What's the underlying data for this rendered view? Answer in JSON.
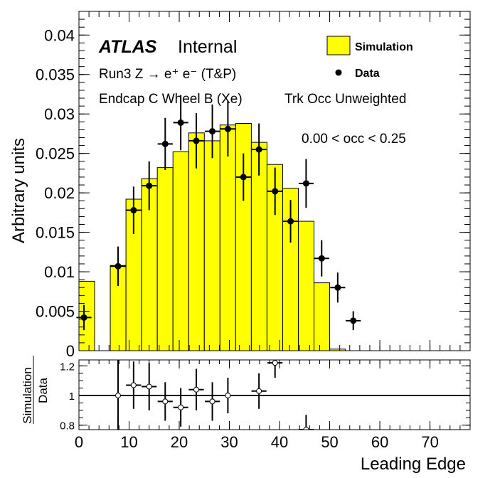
{
  "chart_data": {
    "type": "bar",
    "xlabel": "Leading Edge",
    "ylabel": "Arbitrary units",
    "xlim": [
      0,
      78
    ],
    "ylim": [
      0,
      0.043
    ],
    "x_ticks": [
      "0",
      "10",
      "20",
      "30",
      "40",
      "50",
      "60",
      "70"
    ],
    "y_ticks": [
      "0",
      "0.005",
      "0.01",
      "0.015",
      "0.02",
      "0.025",
      "0.03",
      "0.035",
      "0.04"
    ],
    "annotations": {
      "atlas": "ATLAS",
      "internal": "Internal",
      "process": "Run3 Z → e⁺ e⁻ (T&P)",
      "region": "Endcap C Wheel B (Xe)",
      "weighting": "Trk Occ Unweighted",
      "occupancy": "0.00 < occ < 0.25"
    },
    "legend": {
      "placement": "top-right",
      "simulation": "Simulation",
      "data": "Data"
    },
    "bin_edges": [
      0,
      3.125,
      6.25,
      9.375,
      12.5,
      15.625,
      18.75,
      21.875,
      25,
      28.125,
      31.25,
      34.375,
      37.5,
      40.625,
      43.75,
      46.875,
      50,
      53.125
    ],
    "simulation": [
      0.0088,
      0,
      0.0108,
      0.0192,
      0.0218,
      0.0232,
      0.0252,
      0.0276,
      0.0266,
      0.0286,
      0.0288,
      0.0264,
      0.0236,
      0.0206,
      0.0164,
      0.0086,
      0.0002
    ],
    "data": {
      "x": [
        1.0,
        7.8,
        10.9,
        14.0,
        17.2,
        20.3,
        23.4,
        26.6,
        29.7,
        32.8,
        35.9,
        39.1,
        42.2,
        45.3,
        48.4,
        51.6,
        54.7
      ],
      "y": [
        0.0042,
        0.0107,
        0.0178,
        0.0209,
        0.0262,
        0.0289,
        0.0266,
        0.0278,
        0.0281,
        0.022,
        0.0255,
        0.0202,
        0.0164,
        0.0212,
        0.0117,
        0.008,
        0.0038
      ],
      "yerr": [
        0.0016,
        0.0025,
        0.003,
        0.0031,
        0.0033,
        0.0035,
        0.0035,
        0.0034,
        0.0035,
        0.003,
        0.0033,
        0.003,
        0.0027,
        0.0031,
        0.0023,
        0.0019,
        0.0012
      ],
      "xerr": 1.5
    },
    "ratio": {
      "ylabel_top": "Simulation",
      "ylabel_bottom": "Data",
      "ylim": [
        0.77,
        1.24
      ],
      "y_ticks": [
        "0.8",
        "1",
        "1.2"
      ],
      "x": [
        7.8,
        10.9,
        14.0,
        17.2,
        20.3,
        23.4,
        26.6,
        29.7,
        35.9,
        39.1,
        45.3
      ],
      "y": [
        1.0,
        1.07,
        1.06,
        0.96,
        0.92,
        1.04,
        0.96,
        1.0,
        1.03,
        1.22,
        0.77
      ],
      "yerr": [
        0.24,
        0.16,
        0.16,
        0.13,
        0.13,
        0.14,
        0.13,
        0.12,
        0.12,
        0.1,
        0.1
      ],
      "xerr": 1.5
    }
  }
}
